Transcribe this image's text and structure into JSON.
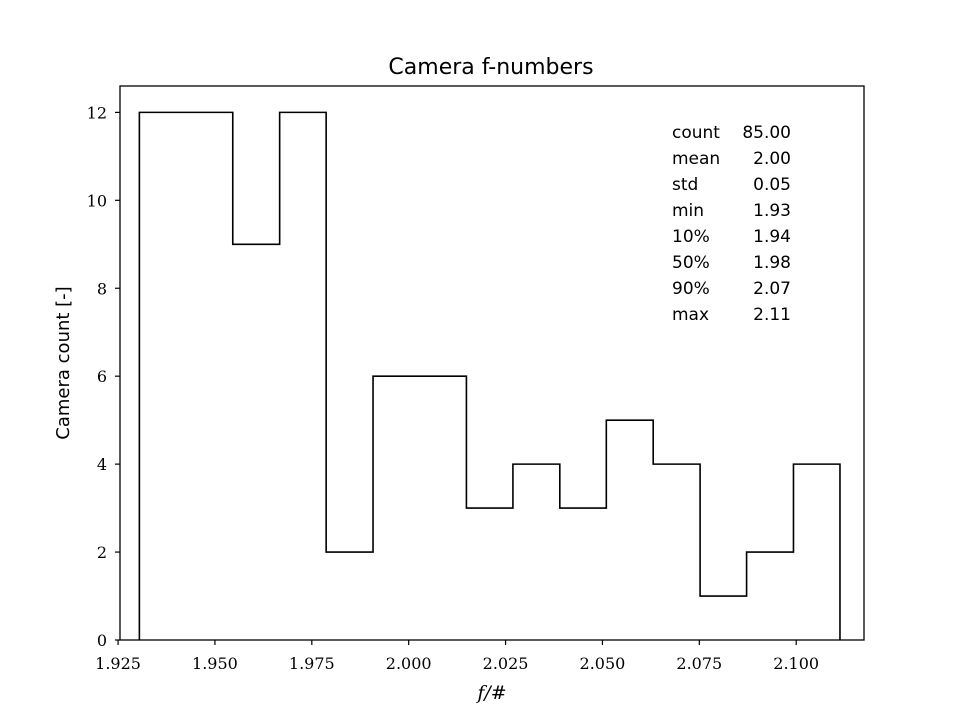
{
  "chart_data": {
    "type": "histogram",
    "title": "Camera f-numbers",
    "xlabel": "f/#",
    "ylabel": "Camera count [-]",
    "xlim": [
      1.9255,
      2.1175
    ],
    "ylim": [
      0,
      12.6
    ],
    "x_ticks": [
      "1.925",
      "1.950",
      "1.975",
      "2.000",
      "2.025",
      "2.050",
      "2.075",
      "2.100"
    ],
    "y_ticks": [
      "0",
      "2",
      "4",
      "6",
      "8",
      "10",
      "12"
    ],
    "bin_edges": [
      1.9305,
      1.9425,
      1.9546,
      1.9667,
      1.9787,
      1.9908,
      2.0028,
      2.0149,
      2.0269,
      2.039,
      2.051,
      2.0631,
      2.0752,
      2.0872,
      2.0993,
      2.1113
    ],
    "counts": [
      12,
      12,
      9,
      12,
      2,
      6,
      6,
      3,
      4,
      3,
      5,
      4,
      1,
      2,
      4
    ],
    "grid": false,
    "stats": [
      {
        "label": "count",
        "value": "85.00"
      },
      {
        "label": "mean",
        "value": "2.00"
      },
      {
        "label": "std",
        "value": "0.05"
      },
      {
        "label": "min",
        "value": "1.93"
      },
      {
        "label": "10%",
        "value": "1.94"
      },
      {
        "label": "50%",
        "value": "1.98"
      },
      {
        "label": "90%",
        "value": "2.07"
      },
      {
        "label": "max",
        "value": "2.11"
      }
    ]
  }
}
